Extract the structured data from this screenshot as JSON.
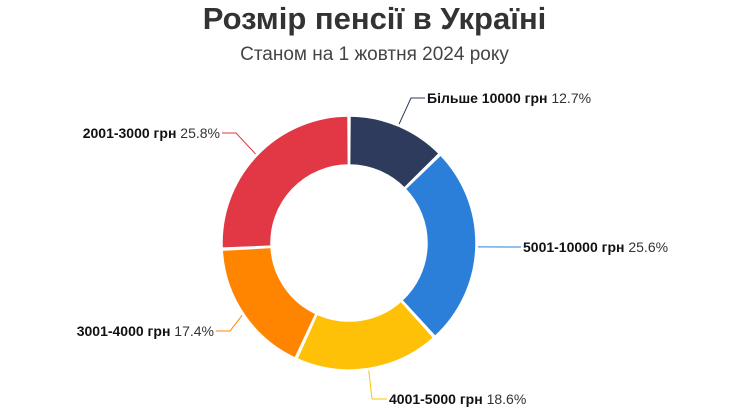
{
  "colors": {
    "gt10000": "#2e3b5c",
    "r5001_10000": "#2b7fd9",
    "r4001_5000": "#ffc107",
    "r3001_4000": "#ff8500",
    "r2001_3000": "#e23744"
  },
  "chart_data": {
    "type": "pie",
    "variant": "donut",
    "title": "Розмір пенсії в Україні",
    "subtitle": "Станом на 1 жовтня 2024 року",
    "slices": [
      {
        "label": "Більше 10000 грн",
        "value": 12.7,
        "value_label": "12.7%",
        "color_key": "gt10000"
      },
      {
        "label": "5001-10000 грн",
        "value": 25.6,
        "value_label": "25.6%",
        "color_key": "r5001_10000"
      },
      {
        "label": "4001-5000 грн",
        "value": 18.6,
        "value_label": "18.6%",
        "color_key": "r4001_5000"
      },
      {
        "label": "3001-4000 грн",
        "value": 17.4,
        "value_label": "17.4%",
        "color_key": "r3001_4000"
      },
      {
        "label": "2001-3000 грн",
        "value": 25.8,
        "value_label": "25.8%",
        "color_key": "r2001_3000"
      }
    ],
    "start_angle": "12 o'clock",
    "direction": "clockwise",
    "legend": "none"
  }
}
